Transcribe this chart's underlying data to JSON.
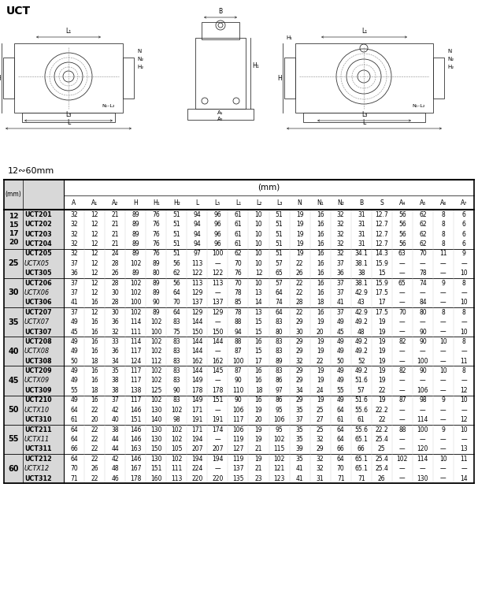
{
  "title": "UCT",
  "subtitle": "12∾60mm",
  "unit_header": "(mm)",
  "col_unit": "(mm)",
  "columns": [
    "A",
    "A₁",
    "A₂",
    "H",
    "H₁",
    "H₂",
    "L",
    "L₅",
    "L₁",
    "L₂",
    "L₃",
    "N",
    "N₁",
    "N₂",
    "B",
    "S",
    "A₄",
    "A₅",
    "A₆",
    "A₇"
  ],
  "drawing_labels_left": {
    "L1": "L₁",
    "L": "L",
    "L3": "L₃",
    "H": "H",
    "N": "N",
    "N1": "N₁",
    "N2": "N₂",
    "H2": "H₂",
    "N1L2": "N₁–L₂"
  },
  "drawing_labels_mid": {
    "B": "B",
    "H1": "H₁",
    "A1": "A₁",
    "A2": "A₂"
  },
  "drawing_labels_right": {
    "L1": "L₁",
    "L": "L",
    "L3": "L₃",
    "H": "H",
    "H1": "H₁",
    "N": "N",
    "N1": "N₁",
    "N2": "N₂",
    "H2": "H₂"
  },
  "groups": [
    {
      "size": "12\n15\n17\n20",
      "rows": [
        {
          "model": "UCT201",
          "bold": true,
          "italic": false,
          "vals": [
            "32",
            "12",
            "21",
            "89",
            "76",
            "51",
            "94",
            "96",
            "61",
            "10",
            "51",
            "19",
            "16",
            "32",
            "31",
            "12.7",
            "56",
            "62",
            "8",
            "6"
          ]
        },
        {
          "model": "UCT202",
          "bold": true,
          "italic": false,
          "vals": [
            "32",
            "12",
            "21",
            "89",
            "76",
            "51",
            "94",
            "96",
            "61",
            "10",
            "51",
            "19",
            "16",
            "32",
            "31",
            "12.7",
            "56",
            "62",
            "8",
            "6"
          ]
        },
        {
          "model": "UCT203",
          "bold": true,
          "italic": false,
          "vals": [
            "32",
            "12",
            "21",
            "89",
            "76",
            "51",
            "94",
            "96",
            "61",
            "10",
            "51",
            "19",
            "16",
            "32",
            "31",
            "12.7",
            "56",
            "62",
            "8",
            "6"
          ]
        },
        {
          "model": "UCT204",
          "bold": true,
          "italic": false,
          "vals": [
            "32",
            "12",
            "21",
            "89",
            "76",
            "51",
            "94",
            "96",
            "61",
            "10",
            "51",
            "19",
            "16",
            "32",
            "31",
            "12.7",
            "56",
            "62",
            "8",
            "6"
          ]
        }
      ]
    },
    {
      "size": "25",
      "rows": [
        {
          "model": "UCT205",
          "bold": true,
          "italic": false,
          "vals": [
            "32",
            "12",
            "24",
            "89",
            "76",
            "51",
            "97",
            "100",
            "62",
            "10",
            "51",
            "19",
            "16",
            "32",
            "34.1",
            "14.3",
            "63",
            "70",
            "11",
            "9"
          ]
        },
        {
          "model": "UCTX05",
          "bold": false,
          "italic": true,
          "vals": [
            "37",
            "12",
            "28",
            "102",
            "89",
            "56",
            "113",
            "—",
            "70",
            "10",
            "57",
            "22",
            "16",
            "37",
            "38.1",
            "15.9",
            "—",
            "—",
            "—",
            "—"
          ]
        },
        {
          "model": "UCT305",
          "bold": true,
          "italic": false,
          "vals": [
            "36",
            "12",
            "26",
            "89",
            "80",
            "62",
            "122",
            "122",
            "76",
            "12",
            "65",
            "26",
            "16",
            "36",
            "38",
            "15",
            "—",
            "78",
            "—",
            "10"
          ]
        }
      ]
    },
    {
      "size": "30",
      "rows": [
        {
          "model": "UCT206",
          "bold": true,
          "italic": false,
          "vals": [
            "37",
            "12",
            "28",
            "102",
            "89",
            "56",
            "113",
            "113",
            "70",
            "10",
            "57",
            "22",
            "16",
            "37",
            "38.1",
            "15.9",
            "65",
            "74",
            "9",
            "8"
          ]
        },
        {
          "model": "UCTX06",
          "bold": false,
          "italic": true,
          "vals": [
            "37",
            "12",
            "30",
            "102",
            "89",
            "64",
            "129",
            "—",
            "78",
            "13",
            "64",
            "22",
            "16",
            "37",
            "42.9",
            "17.5",
            "—",
            "—",
            "—",
            "—"
          ]
        },
        {
          "model": "UCT306",
          "bold": true,
          "italic": false,
          "vals": [
            "41",
            "16",
            "28",
            "100",
            "90",
            "70",
            "137",
            "137",
            "85",
            "14",
            "74",
            "28",
            "18",
            "41",
            "43",
            "17",
            "—",
            "84",
            "—",
            "10"
          ]
        }
      ]
    },
    {
      "size": "35",
      "rows": [
        {
          "model": "UCT207",
          "bold": true,
          "italic": false,
          "vals": [
            "37",
            "12",
            "30",
            "102",
            "89",
            "64",
            "129",
            "129",
            "78",
            "13",
            "64",
            "22",
            "16",
            "37",
            "42.9",
            "17.5",
            "70",
            "80",
            "8",
            "8"
          ]
        },
        {
          "model": "UCTX07",
          "bold": false,
          "italic": true,
          "vals": [
            "49",
            "16",
            "36",
            "114",
            "102",
            "83",
            "144",
            "—",
            "88",
            "15",
            "83",
            "29",
            "19",
            "49",
            "49.2",
            "19",
            "—",
            "—",
            "—",
            "—"
          ]
        },
        {
          "model": "UCT307",
          "bold": true,
          "italic": false,
          "vals": [
            "45",
            "16",
            "32",
            "111",
            "100",
            "75",
            "150",
            "150",
            "94",
            "15",
            "80",
            "30",
            "20",
            "45",
            "48",
            "19",
            "—",
            "90",
            "—",
            "10"
          ]
        }
      ]
    },
    {
      "size": "40",
      "rows": [
        {
          "model": "UCT208",
          "bold": true,
          "italic": false,
          "vals": [
            "49",
            "16",
            "33",
            "114",
            "102",
            "83",
            "144",
            "144",
            "88",
            "16",
            "83",
            "29",
            "19",
            "49",
            "49.2",
            "19",
            "82",
            "90",
            "10",
            "8"
          ]
        },
        {
          "model": "UCTX08",
          "bold": false,
          "italic": true,
          "vals": [
            "49",
            "16",
            "36",
            "117",
            "102",
            "83",
            "144",
            "—",
            "87",
            "15",
            "83",
            "29",
            "19",
            "49",
            "49.2",
            "19",
            "—",
            "—",
            "—",
            "—"
          ]
        },
        {
          "model": "UCT308",
          "bold": true,
          "italic": false,
          "vals": [
            "50",
            "18",
            "34",
            "124",
            "112",
            "83",
            "162",
            "162",
            "100",
            "17",
            "89",
            "32",
            "22",
            "50",
            "52",
            "19",
            "—",
            "100",
            "—",
            "11"
          ]
        }
      ]
    },
    {
      "size": "45",
      "rows": [
        {
          "model": "UCT209",
          "bold": true,
          "italic": false,
          "vals": [
            "49",
            "16",
            "35",
            "117",
            "102",
            "83",
            "144",
            "145",
            "87",
            "16",
            "83",
            "29",
            "19",
            "49",
            "49.2",
            "19",
            "82",
            "90",
            "10",
            "8"
          ]
        },
        {
          "model": "UCTX09",
          "bold": false,
          "italic": true,
          "vals": [
            "49",
            "16",
            "38",
            "117",
            "102",
            "83",
            "149",
            "—",
            "90",
            "16",
            "86",
            "29",
            "19",
            "49",
            "51.6",
            "19",
            "—",
            "—",
            "—",
            "—"
          ]
        },
        {
          "model": "UCT309",
          "bold": true,
          "italic": false,
          "vals": [
            "55",
            "18",
            "38",
            "138",
            "125",
            "90",
            "178",
            "178",
            "110",
            "18",
            "97",
            "34",
            "24",
            "55",
            "57",
            "22",
            "—",
            "106",
            "—",
            "12"
          ]
        }
      ]
    },
    {
      "size": "50",
      "rows": [
        {
          "model": "UCT210",
          "bold": true,
          "italic": false,
          "vals": [
            "49",
            "16",
            "37",
            "117",
            "102",
            "83",
            "149",
            "151",
            "90",
            "16",
            "86",
            "29",
            "19",
            "49",
            "51.6",
            "19",
            "87",
            "98",
            "9",
            "10"
          ]
        },
        {
          "model": "UCTX10",
          "bold": false,
          "italic": true,
          "vals": [
            "64",
            "22",
            "42",
            "146",
            "130",
            "102",
            "171",
            "—",
            "106",
            "19",
            "95",
            "35",
            "25",
            "64",
            "55.6",
            "22.2",
            "—",
            "—",
            "—",
            "—"
          ]
        },
        {
          "model": "UCT310",
          "bold": true,
          "italic": false,
          "vals": [
            "61",
            "20",
            "40",
            "151",
            "140",
            "98",
            "191",
            "191",
            "117",
            "20",
            "106",
            "37",
            "27",
            "61",
            "61",
            "22",
            "—",
            "114",
            "—",
            "12"
          ]
        }
      ]
    },
    {
      "size": "55",
      "rows": [
        {
          "model": "UCT211",
          "bold": true,
          "italic": false,
          "vals": [
            "64",
            "22",
            "38",
            "146",
            "130",
            "102",
            "171",
            "174",
            "106",
            "19",
            "95",
            "35",
            "25",
            "64",
            "55.6",
            "22.2",
            "88",
            "100",
            "9",
            "10"
          ]
        },
        {
          "model": "UCTX11",
          "bold": false,
          "italic": true,
          "vals": [
            "64",
            "22",
            "44",
            "146",
            "130",
            "102",
            "194",
            "—",
            "119",
            "19",
            "102",
            "35",
            "32",
            "64",
            "65.1",
            "25.4",
            "—",
            "—",
            "—",
            "—"
          ]
        },
        {
          "model": "UCT311",
          "bold": true,
          "italic": false,
          "vals": [
            "66",
            "22",
            "44",
            "163",
            "150",
            "105",
            "207",
            "207",
            "127",
            "21",
            "115",
            "39",
            "29",
            "66",
            "66",
            "25",
            "—",
            "120",
            "—",
            "13"
          ]
        }
      ]
    },
    {
      "size": "60",
      "rows": [
        {
          "model": "UCT212",
          "bold": true,
          "italic": false,
          "vals": [
            "64",
            "22",
            "42",
            "146",
            "130",
            "102",
            "194",
            "194",
            "119",
            "19",
            "102",
            "35",
            "32",
            "64",
            "65.1",
            "25.4",
            "102",
            "114",
            "10",
            "11"
          ]
        },
        {
          "model": "UCTX12",
          "bold": false,
          "italic": true,
          "vals": [
            "70",
            "26",
            "48",
            "167",
            "151",
            "111",
            "224",
            "—",
            "137",
            "21",
            "121",
            "41",
            "32",
            "70",
            "65.1",
            "25.4",
            "—",
            "—",
            "—",
            "—"
          ]
        },
        {
          "model": "UCT312",
          "bold": true,
          "italic": false,
          "vals": [
            "71",
            "22",
            "46",
            "178",
            "160",
            "113",
            "220",
            "220",
            "135",
            "23",
            "123",
            "41",
            "31",
            "71",
            "71",
            "26",
            "—",
            "130",
            "—",
            "14"
          ]
        }
      ]
    }
  ]
}
